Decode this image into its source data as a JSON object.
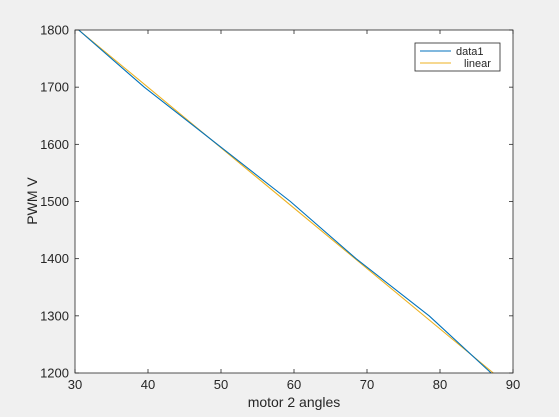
{
  "chart_data": {
    "type": "line",
    "xlabel": "motor 2 angles",
    "ylabel": "PWM V",
    "xlim": [
      30,
      90
    ],
    "ylim": [
      1200,
      1800
    ],
    "xticks": [
      30,
      40,
      50,
      60,
      70,
      80,
      90
    ],
    "yticks": [
      1200,
      1300,
      1400,
      1500,
      1600,
      1700,
      1800
    ],
    "xtick_labels": [
      "30",
      "40",
      "50",
      "60",
      "70",
      "80",
      "90"
    ],
    "ytick_labels": [
      "1200",
      "1300",
      "1400",
      "1500",
      "1600",
      "1700",
      "1800"
    ],
    "grid": false,
    "legend_position": "top-right",
    "series": [
      {
        "name": "data1",
        "color": "#0072bd",
        "x": [
          30.5,
          39.5,
          49.5,
          59.5,
          68.5,
          78.5,
          87.0
        ],
        "y": [
          1800,
          1700,
          1600,
          1500,
          1400,
          1300,
          1200
        ]
      },
      {
        "name": "linear",
        "color": "#edb120",
        "x": [
          30.5,
          87.3
        ],
        "y": [
          1800,
          1200
        ]
      }
    ]
  }
}
